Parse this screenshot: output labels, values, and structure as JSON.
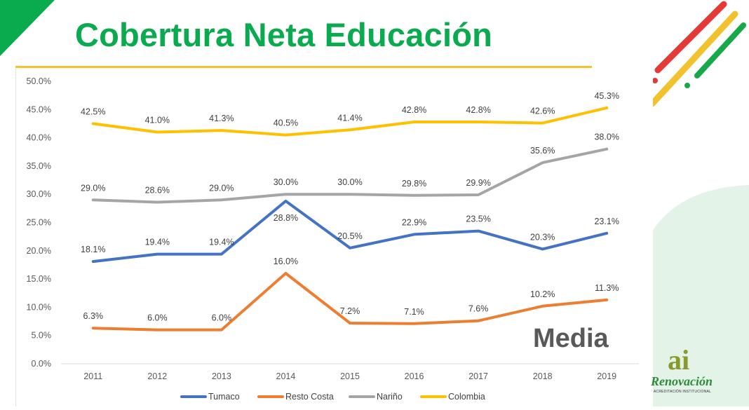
{
  "slide": {
    "title": "Cobertura Neta Educación",
    "watermark": "Media",
    "logo": {
      "mark": "ai",
      "name": "Renovación",
      "subtitle": "ACREDITACIÓN INSTITUCIONAL"
    },
    "colors": {
      "title": "#0aaa4f",
      "accent_yellow": "#f2c12e",
      "accent_red": "#e53935",
      "accent_green": "#17a84a"
    }
  },
  "chart_data": {
    "type": "line",
    "title": "",
    "xlabel": "",
    "ylabel": "",
    "categories": [
      "2011",
      "2012",
      "2013",
      "2014",
      "2015",
      "2016",
      "2017",
      "2018",
      "2019"
    ],
    "ylim": [
      0,
      50
    ],
    "y_ticks": [
      "0.0%",
      "5.0%",
      "10.0%",
      "15.0%",
      "20.0%",
      "25.0%",
      "30.0%",
      "35.0%",
      "40.0%",
      "45.0%",
      "50.0%"
    ],
    "grid": false,
    "legend_position": "bottom",
    "series": [
      {
        "name": "Tumaco",
        "color": "#4472c4",
        "values": [
          18.1,
          19.4,
          19.4,
          28.8,
          20.5,
          22.9,
          23.5,
          20.3,
          23.1
        ],
        "labels": [
          "18.1%",
          "19.4%",
          "19.4%",
          "28.8%",
          "20.5%",
          "22.9%",
          "23.5%",
          "20.3%",
          "23.1%"
        ]
      },
      {
        "name": "Resto Costa",
        "color": "#ed7d31",
        "values": [
          6.3,
          6.0,
          6.0,
          16.0,
          7.2,
          7.1,
          7.6,
          10.2,
          11.3
        ],
        "labels": [
          "6.3%",
          "6.0%",
          "6.0%",
          "16.0%",
          "7.2%",
          "7.1%",
          "7.6%",
          "10.2%",
          "11.3%"
        ]
      },
      {
        "name": "Nariño",
        "color": "#a5a5a5",
        "values": [
          29.0,
          28.6,
          29.0,
          30.0,
          30.0,
          29.8,
          29.9,
          35.6,
          38.0
        ],
        "labels": [
          "29.0%",
          "28.6%",
          "29.0%",
          "30.0%",
          "30.0%",
          "29.8%",
          "29.9%",
          "35.6%",
          "38.0%"
        ]
      },
      {
        "name": "Colombia",
        "color": "#ffc000",
        "values": [
          42.5,
          41.0,
          41.3,
          40.5,
          41.4,
          42.8,
          42.8,
          42.6,
          45.3
        ],
        "labels": [
          "42.5%",
          "41.0%",
          "41.3%",
          "40.5%",
          "41.4%",
          "42.8%",
          "42.8%",
          "42.6%",
          "45.3%"
        ]
      }
    ]
  }
}
